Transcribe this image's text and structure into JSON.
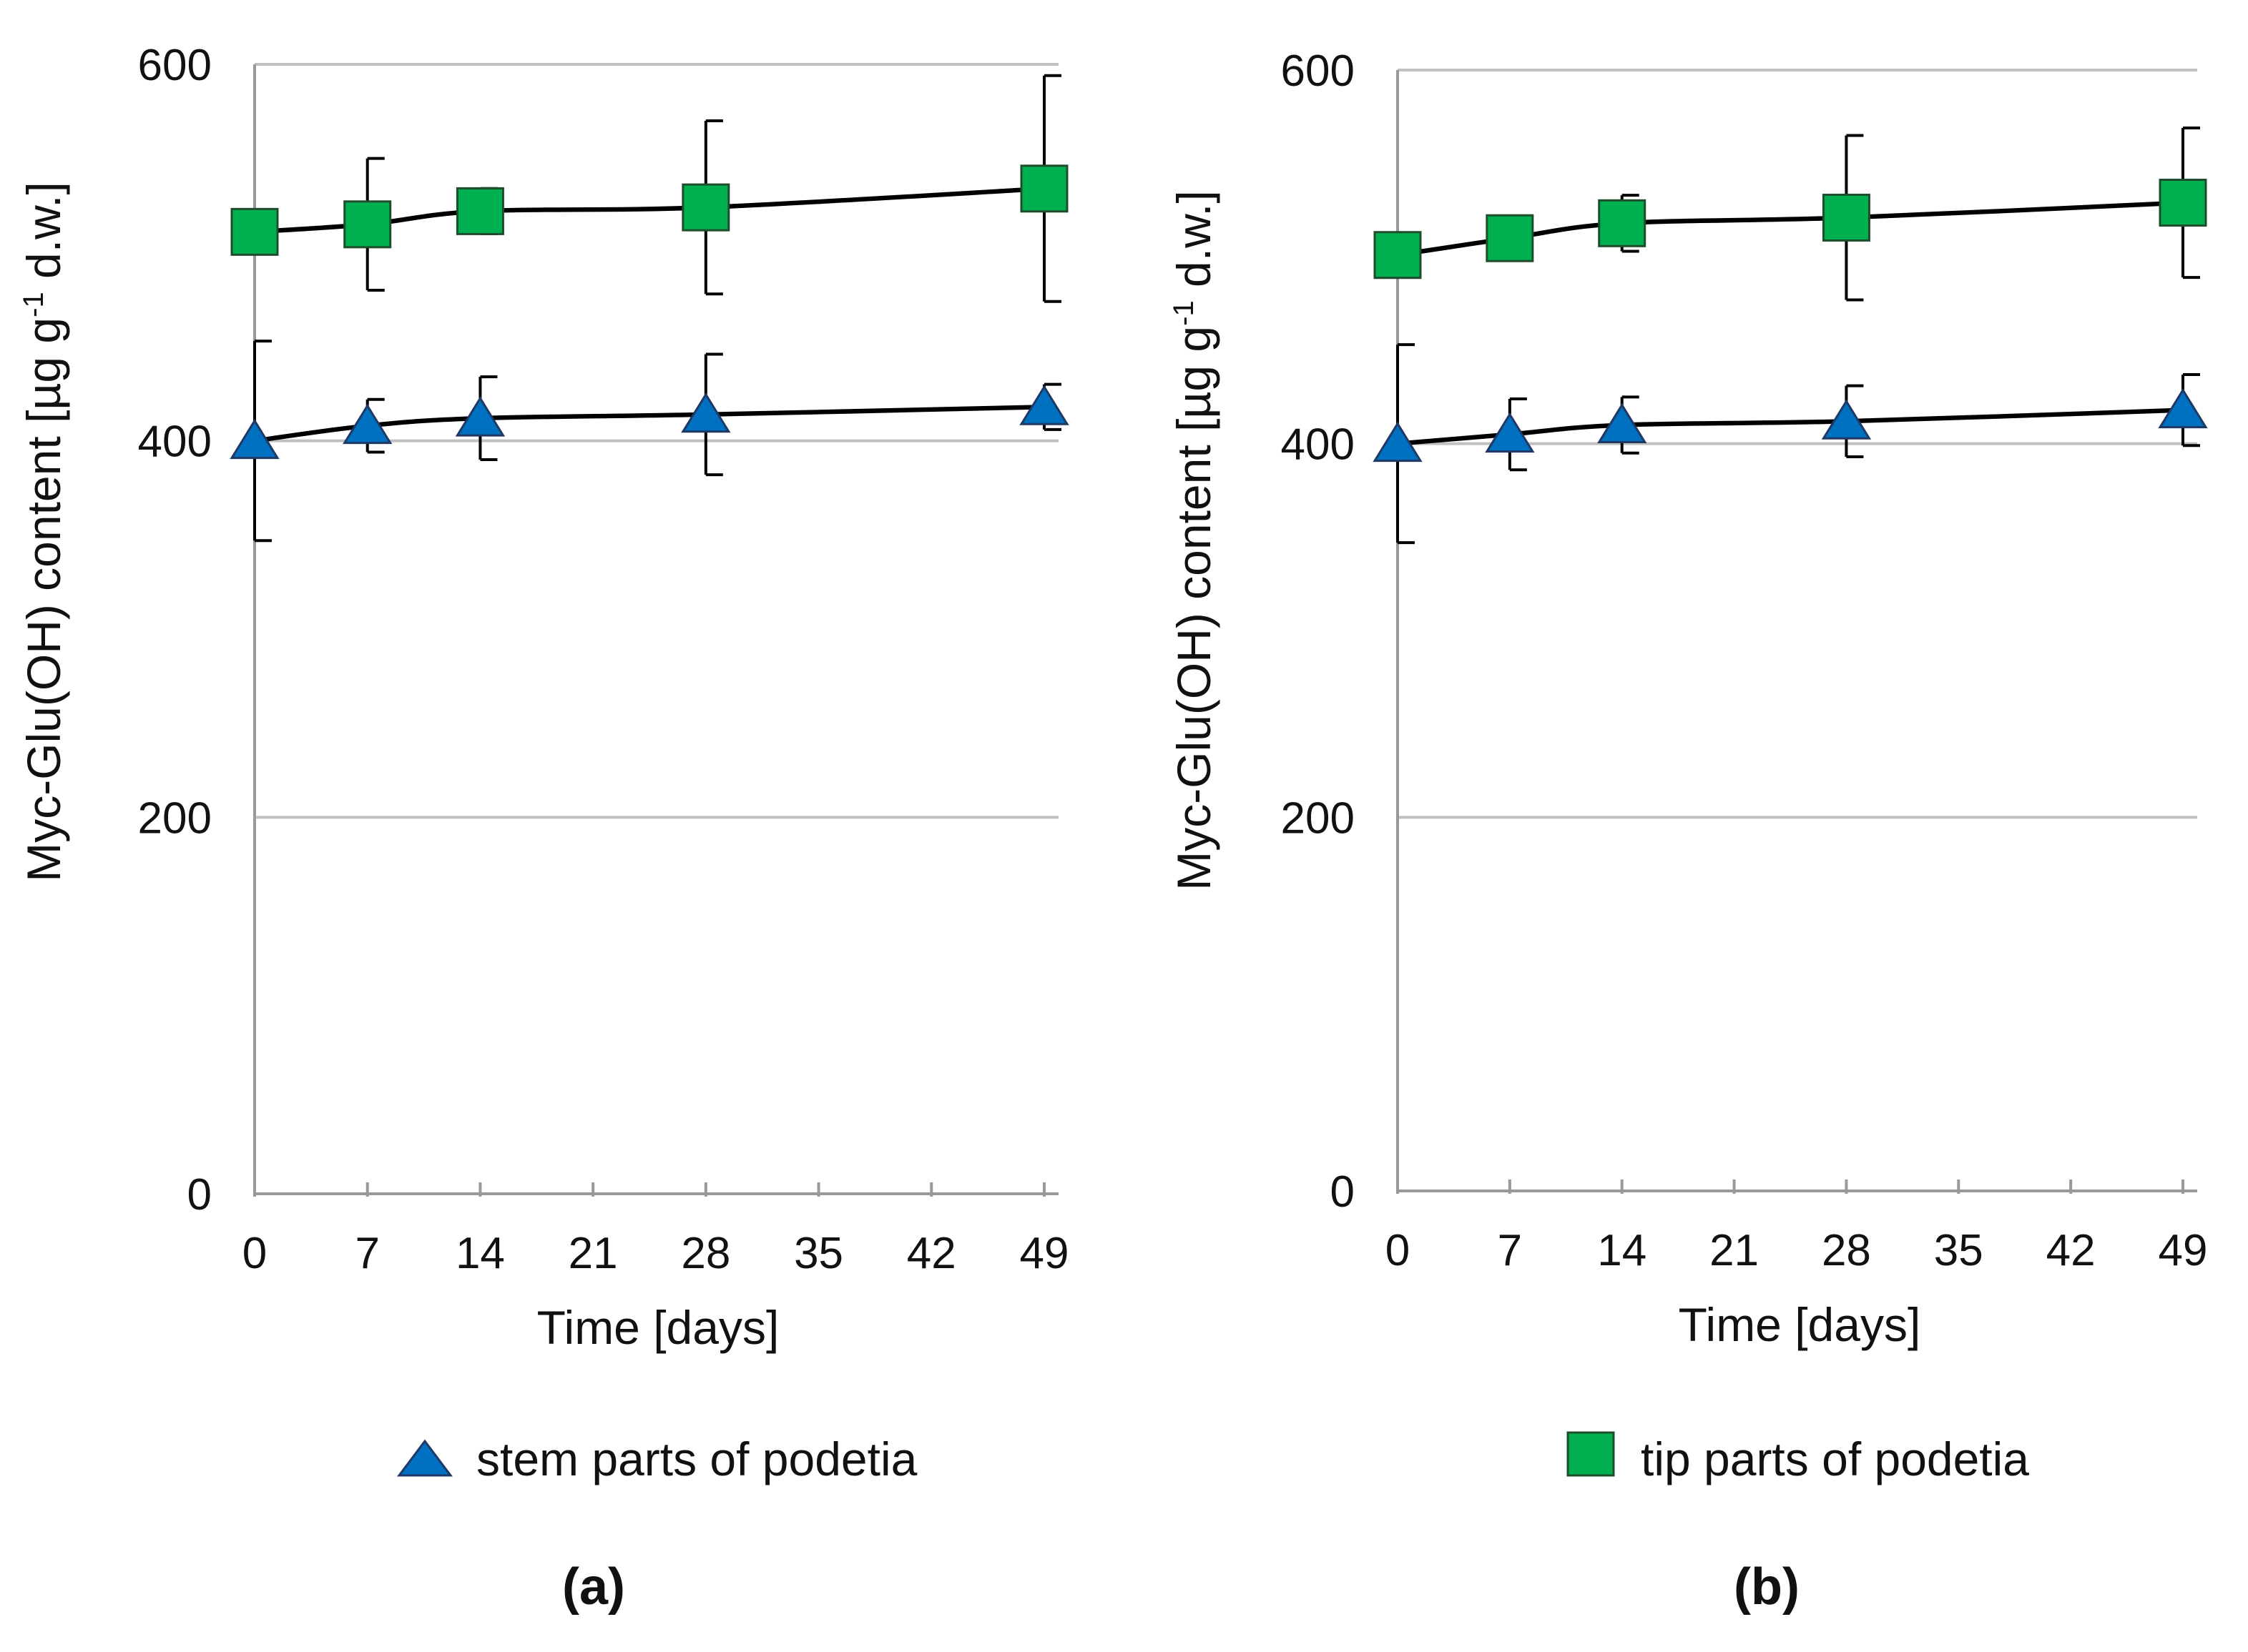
{
  "colors": {
    "stem": "#0070c0",
    "tip": "#00b050",
    "grid": "#c0c0c0",
    "line": "#000000"
  },
  "legend": {
    "stem_label": "stem parts of podetia",
    "tip_label": "tip parts of podetia"
  },
  "chart_data": [
    {
      "type": "line",
      "panel_label": "(a)",
      "xlabel": "Time [days]",
      "ylabel_main": "Myc-Glu(OH) content [µg g",
      "ylabel_sup": "-1",
      "ylabel_tail": " d.w.]",
      "x_ticks": [
        0,
        7,
        14,
        21,
        28,
        35,
        42,
        49
      ],
      "y_ticks": [
        0,
        200,
        400,
        600
      ],
      "xlim": [
        0,
        49
      ],
      "ylim": [
        0,
        600
      ],
      "grid": true,
      "x": [
        0,
        7,
        14,
        28,
        49
      ],
      "series": [
        {
          "name": "tip parts of podetia",
          "marker": "square",
          "values": [
            511,
            515,
            522,
            524,
            534
          ],
          "errors": [
            5,
            35,
            12,
            46,
            60
          ]
        },
        {
          "name": "stem parts of podetia",
          "marker": "triangle",
          "values": [
            400,
            408,
            412,
            414,
            418
          ],
          "errors": [
            53,
            14,
            22,
            32,
            12
          ]
        }
      ]
    },
    {
      "type": "line",
      "panel_label": "(b)",
      "xlabel": "Time [days]",
      "ylabel_main": "Myc-Glu(OH) content [µg g",
      "ylabel_sup": "-1",
      "ylabel_tail": " d.w.]",
      "x_ticks": [
        0,
        7,
        14,
        21,
        28,
        35,
        42,
        49
      ],
      "y_ticks": [
        0,
        200,
        400,
        600
      ],
      "xlim": [
        0,
        49
      ],
      "ylim": [
        0,
        600
      ],
      "grid": true,
      "x": [
        0,
        7,
        14,
        28,
        49
      ],
      "series": [
        {
          "name": "tip parts of podetia",
          "marker": "square",
          "values": [
            501,
            510,
            518,
            521,
            529
          ],
          "errors": [
            6,
            6,
            15,
            44,
            40
          ]
        },
        {
          "name": "stem parts of podetia",
          "marker": "triangle",
          "values": [
            400,
            405,
            410,
            412,
            418
          ],
          "errors": [
            53,
            19,
            15,
            19,
            19
          ]
        }
      ]
    }
  ]
}
